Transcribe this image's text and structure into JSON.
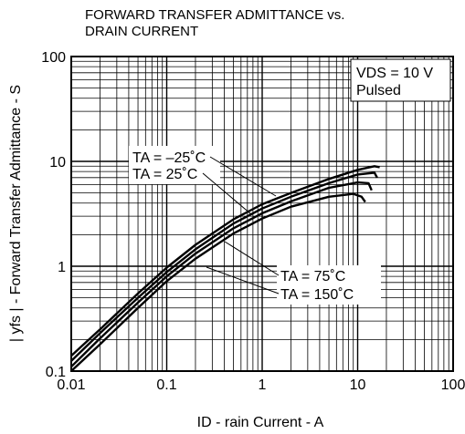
{
  "chart_data": {
    "type": "line",
    "title_line1": "FORWARD TRANSFER ADMITTANCE vs.",
    "title_line2": "DRAIN CURRENT",
    "ylabel": "| yfs | - Forward Transfer Admittance - S",
    "xlabel": "ID - rain Current - A",
    "x_scale": "log",
    "y_scale": "log",
    "xlim": [
      0.01,
      100
    ],
    "ylim": [
      0.1,
      100
    ],
    "grid": true,
    "x_ticks": [
      "0.01",
      "0.1",
      "1",
      "10",
      "100"
    ],
    "y_ticks": [
      "0.1",
      "1",
      "10",
      "100"
    ],
    "condition_line1": "VDS = 10 V",
    "condition_line2": "Pulsed",
    "annotations": {
      "ta_m25": "TA = –25˚C",
      "ta_25": "TA = 25˚C",
      "ta_75": "TA = 75˚C",
      "ta_150": "TA = 150˚C"
    },
    "series": [
      {
        "name": "TA = –25˚C",
        "x": [
          0.01,
          0.02,
          0.05,
          0.1,
          0.2,
          0.5,
          1,
          2,
          5,
          10,
          15,
          17
        ],
        "y": [
          0.14,
          0.25,
          0.55,
          0.97,
          1.6,
          2.8,
          3.9,
          5.0,
          6.8,
          8.3,
          9.0,
          8.8
        ]
      },
      {
        "name": "TA = 25˚C",
        "x": [
          0.01,
          0.02,
          0.05,
          0.1,
          0.2,
          0.5,
          1,
          2,
          5,
          10,
          15,
          16
        ],
        "y": [
          0.125,
          0.23,
          0.5,
          0.88,
          1.45,
          2.55,
          3.55,
          4.6,
          6.2,
          7.5,
          7.8,
          7.0
        ]
      },
      {
        "name": "TA = 75˚C",
        "x": [
          0.01,
          0.02,
          0.05,
          0.1,
          0.2,
          0.5,
          1,
          2,
          5,
          10,
          13,
          14
        ],
        "y": [
          0.11,
          0.205,
          0.45,
          0.8,
          1.32,
          2.3,
          3.2,
          4.15,
          5.6,
          6.3,
          6.2,
          5.3
        ]
      },
      {
        "name": "TA = 150˚C",
        "x": [
          0.01,
          0.02,
          0.05,
          0.1,
          0.2,
          0.5,
          1,
          2,
          5,
          9,
          11,
          12
        ],
        "y": [
          0.1,
          0.18,
          0.4,
          0.72,
          1.18,
          2.05,
          2.85,
          3.7,
          4.6,
          4.9,
          4.6,
          4.1
        ]
      }
    ]
  }
}
